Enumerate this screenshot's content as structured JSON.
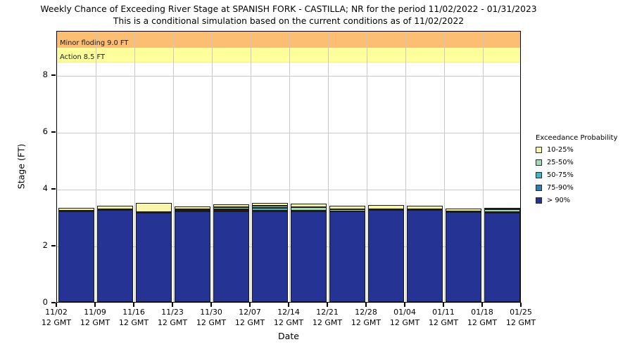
{
  "chart_data": {
    "type": "bar",
    "stacked": true,
    "title": "Weekly Chance of Exceeding River Stage at SPANISH FORK - CASTILLA; NR for the period 11/02/2022 - 01/31/2023",
    "subtitle": "This is a conditional simulation based on the current conditions as of 11/02/2022",
    "xlabel": "Date",
    "ylabel": "Stage (FT)",
    "ylim": [
      0,
      9.56
    ],
    "yticks": [
      0,
      2,
      4,
      6,
      8
    ],
    "grid": true,
    "xtick_labels": [
      "11/02",
      "11/09",
      "11/16",
      "11/23",
      "11/30",
      "12/07",
      "12/14",
      "12/21",
      "12/28",
      "01/04",
      "01/11",
      "01/18",
      "01/25"
    ],
    "xtick_sublabel": "12 GMT",
    "note": "bars span weekly intervals between consecutive x ticks",
    "bar_interval_start_labels": [
      "11/02",
      "11/09",
      "11/16",
      "11/23",
      "11/30",
      "12/07",
      "12/14",
      "12/21",
      "12/28",
      "01/04",
      "01/11",
      "01/18"
    ],
    "series": [
      {
        "name": "> 90%",
        "color": "#253494",
        "values": [
          3.19,
          3.23,
          3.13,
          3.19,
          3.18,
          3.18,
          3.18,
          3.18,
          3.24,
          3.23,
          3.16,
          3.14
        ]
      },
      {
        "name": "75-90%",
        "color": "#2c7fb8",
        "values": [
          0.0,
          0.0,
          0.0,
          0.0,
          0.02,
          0.04,
          0.01,
          0.0,
          0.0,
          0.0,
          0.0,
          0.0
        ]
      },
      {
        "name": "50-75%",
        "color": "#41b6c4",
        "values": [
          0.01,
          0.01,
          0.01,
          0.02,
          0.05,
          0.08,
          0.03,
          0.01,
          0.01,
          0.01,
          0.01,
          0.02
        ]
      },
      {
        "name": "25-50%",
        "color": "#a1dab4",
        "values": [
          0.01,
          0.02,
          0.02,
          0.06,
          0.08,
          0.08,
          0.12,
          0.06,
          0.02,
          0.02,
          0.02,
          0.09
        ]
      },
      {
        "name": "10-25%",
        "color": "#f8f5ad",
        "values": [
          0.1,
          0.12,
          0.32,
          0.09,
          0.1,
          0.1,
          0.12,
          0.13,
          0.14,
          0.12,
          0.09,
          0.03
        ]
      }
    ],
    "thresholds": [
      {
        "label": "Minor floding 9.0 FT",
        "from": 9.0,
        "to": 9.56,
        "color": "#fbbe72",
        "edge_color": "#f6a848"
      },
      {
        "label": "Action 8.5 FT",
        "from": 8.5,
        "to": 9.0,
        "color": "#ffff9c",
        "edge_color": "#f4f480"
      }
    ],
    "legend": {
      "title": "Exceedance Probability",
      "position": "right",
      "items": [
        {
          "label": "10-25%",
          "color": "#f8f5ad"
        },
        {
          "label": "25-50%",
          "color": "#a1dab4"
        },
        {
          "label": "50-75%",
          "color": "#41b6c4"
        },
        {
          "label": "75-90%",
          "color": "#2c7fb8"
        },
        {
          "label": "> 90%",
          "color": "#253494"
        }
      ]
    },
    "colors": {
      "grid": "#c9c9c9",
      "bar_edge": "#1b1b1b",
      "axis": "#000000"
    }
  }
}
